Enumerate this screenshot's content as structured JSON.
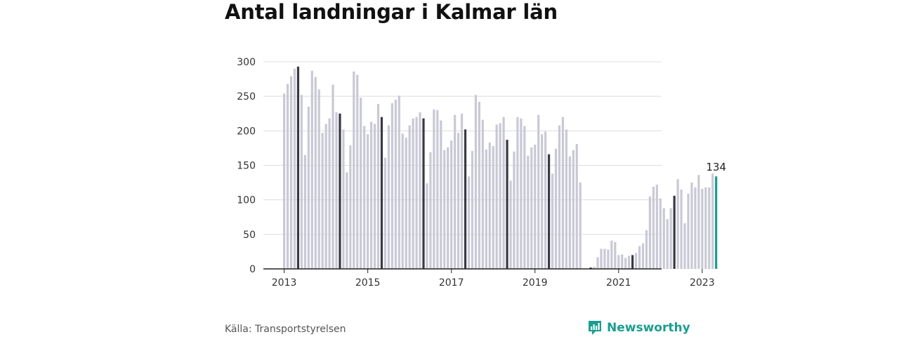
{
  "title": "Antal landningar i Kalmar län",
  "source": "Källa: Transportstyrelsen",
  "brand": {
    "name": "Newsworthy",
    "icon": "newsworthy-logo-icon"
  },
  "colors": {
    "bar": "#c9c9d6",
    "highlight": "#3a3843",
    "latest": "#1a9e8f",
    "grid": "#dddddd",
    "axis": "#222222",
    "text": "#333333"
  },
  "chart_data": {
    "type": "bar",
    "title": "Antal landningar i Kalmar län",
    "xlabel": "",
    "ylabel": "",
    "ylim": [
      0,
      300
    ],
    "yticks": [
      0,
      50,
      100,
      150,
      200,
      250,
      300
    ],
    "xticks": [
      "2013",
      "2015",
      "2017",
      "2019",
      "2021",
      "2023"
    ],
    "start": "2013-01",
    "highlight_rule": "May of each year shown dark; latest month shown in teal",
    "annotation": {
      "label": "134",
      "category": "2023-05"
    },
    "categories": [
      "2013-01",
      "2013-02",
      "2013-03",
      "2013-04",
      "2013-05",
      "2013-06",
      "2013-07",
      "2013-08",
      "2013-09",
      "2013-10",
      "2013-11",
      "2013-12",
      "2014-01",
      "2014-02",
      "2014-03",
      "2014-04",
      "2014-05",
      "2014-06",
      "2014-07",
      "2014-08",
      "2014-09",
      "2014-10",
      "2014-11",
      "2014-12",
      "2015-01",
      "2015-02",
      "2015-03",
      "2015-04",
      "2015-05",
      "2015-06",
      "2015-07",
      "2015-08",
      "2015-09",
      "2015-10",
      "2015-11",
      "2015-12",
      "2016-01",
      "2016-02",
      "2016-03",
      "2016-04",
      "2016-05",
      "2016-06",
      "2016-07",
      "2016-08",
      "2016-09",
      "2016-10",
      "2016-11",
      "2016-12",
      "2017-01",
      "2017-02",
      "2017-03",
      "2017-04",
      "2017-05",
      "2017-06",
      "2017-07",
      "2017-08",
      "2017-09",
      "2017-10",
      "2017-11",
      "2017-12",
      "2018-01",
      "2018-02",
      "2018-03",
      "2018-04",
      "2018-05",
      "2018-06",
      "2018-07",
      "2018-08",
      "2018-09",
      "2018-10",
      "2018-11",
      "2018-12",
      "2019-01",
      "2019-02",
      "2019-03",
      "2019-04",
      "2019-05",
      "2019-06",
      "2019-07",
      "2019-08",
      "2019-09",
      "2019-10",
      "2019-11",
      "2019-12",
      "2020-01",
      "2020-02",
      "2020-03",
      "2020-04",
      "2020-05",
      "2020-06",
      "2020-07",
      "2020-08",
      "2020-09",
      "2020-10",
      "2020-11",
      "2020-12",
      "2021-01",
      "2021-02",
      "2021-03",
      "2021-04",
      "2021-05",
      "2021-06",
      "2021-07",
      "2021-08",
      "2021-09",
      "2021-10",
      "2021-11",
      "2021-12",
      "2022-01",
      "2022-02",
      "2022-03",
      "2022-04",
      "2022-05",
      "2022-06",
      "2022-07",
      "2022-08",
      "2022-09",
      "2022-10",
      "2022-11",
      "2022-12",
      "2023-01",
      "2023-02",
      "2023-03",
      "2023-04",
      "2023-05"
    ],
    "values": [
      254,
      268,
      279,
      290,
      293,
      252,
      165,
      235,
      287,
      278,
      260,
      197,
      210,
      218,
      267,
      227,
      225,
      202,
      140,
      179,
      286,
      281,
      248,
      207,
      195,
      213,
      210,
      239,
      220,
      161,
      208,
      240,
      245,
      251,
      196,
      190,
      208,
      218,
      220,
      227,
      218,
      124,
      169,
      231,
      230,
      215,
      172,
      176,
      186,
      223,
      197,
      225,
      202,
      134,
      171,
      252,
      242,
      216,
      173,
      183,
      178,
      209,
      211,
      220,
      187,
      128,
      170,
      220,
      218,
      207,
      164,
      176,
      180,
      223,
      195,
      199,
      166,
      138,
      174,
      208,
      220,
      202,
      163,
      172,
      181,
      125,
      0,
      0,
      2,
      3,
      17,
      29,
      29,
      28,
      41,
      39,
      20,
      21,
      16,
      19,
      20,
      23,
      33,
      37,
      56,
      105,
      119,
      122,
      102,
      88,
      72,
      88,
      106,
      130,
      115,
      66,
      109,
      125,
      118,
      136,
      116,
      118,
      118,
      138,
      134
    ]
  }
}
